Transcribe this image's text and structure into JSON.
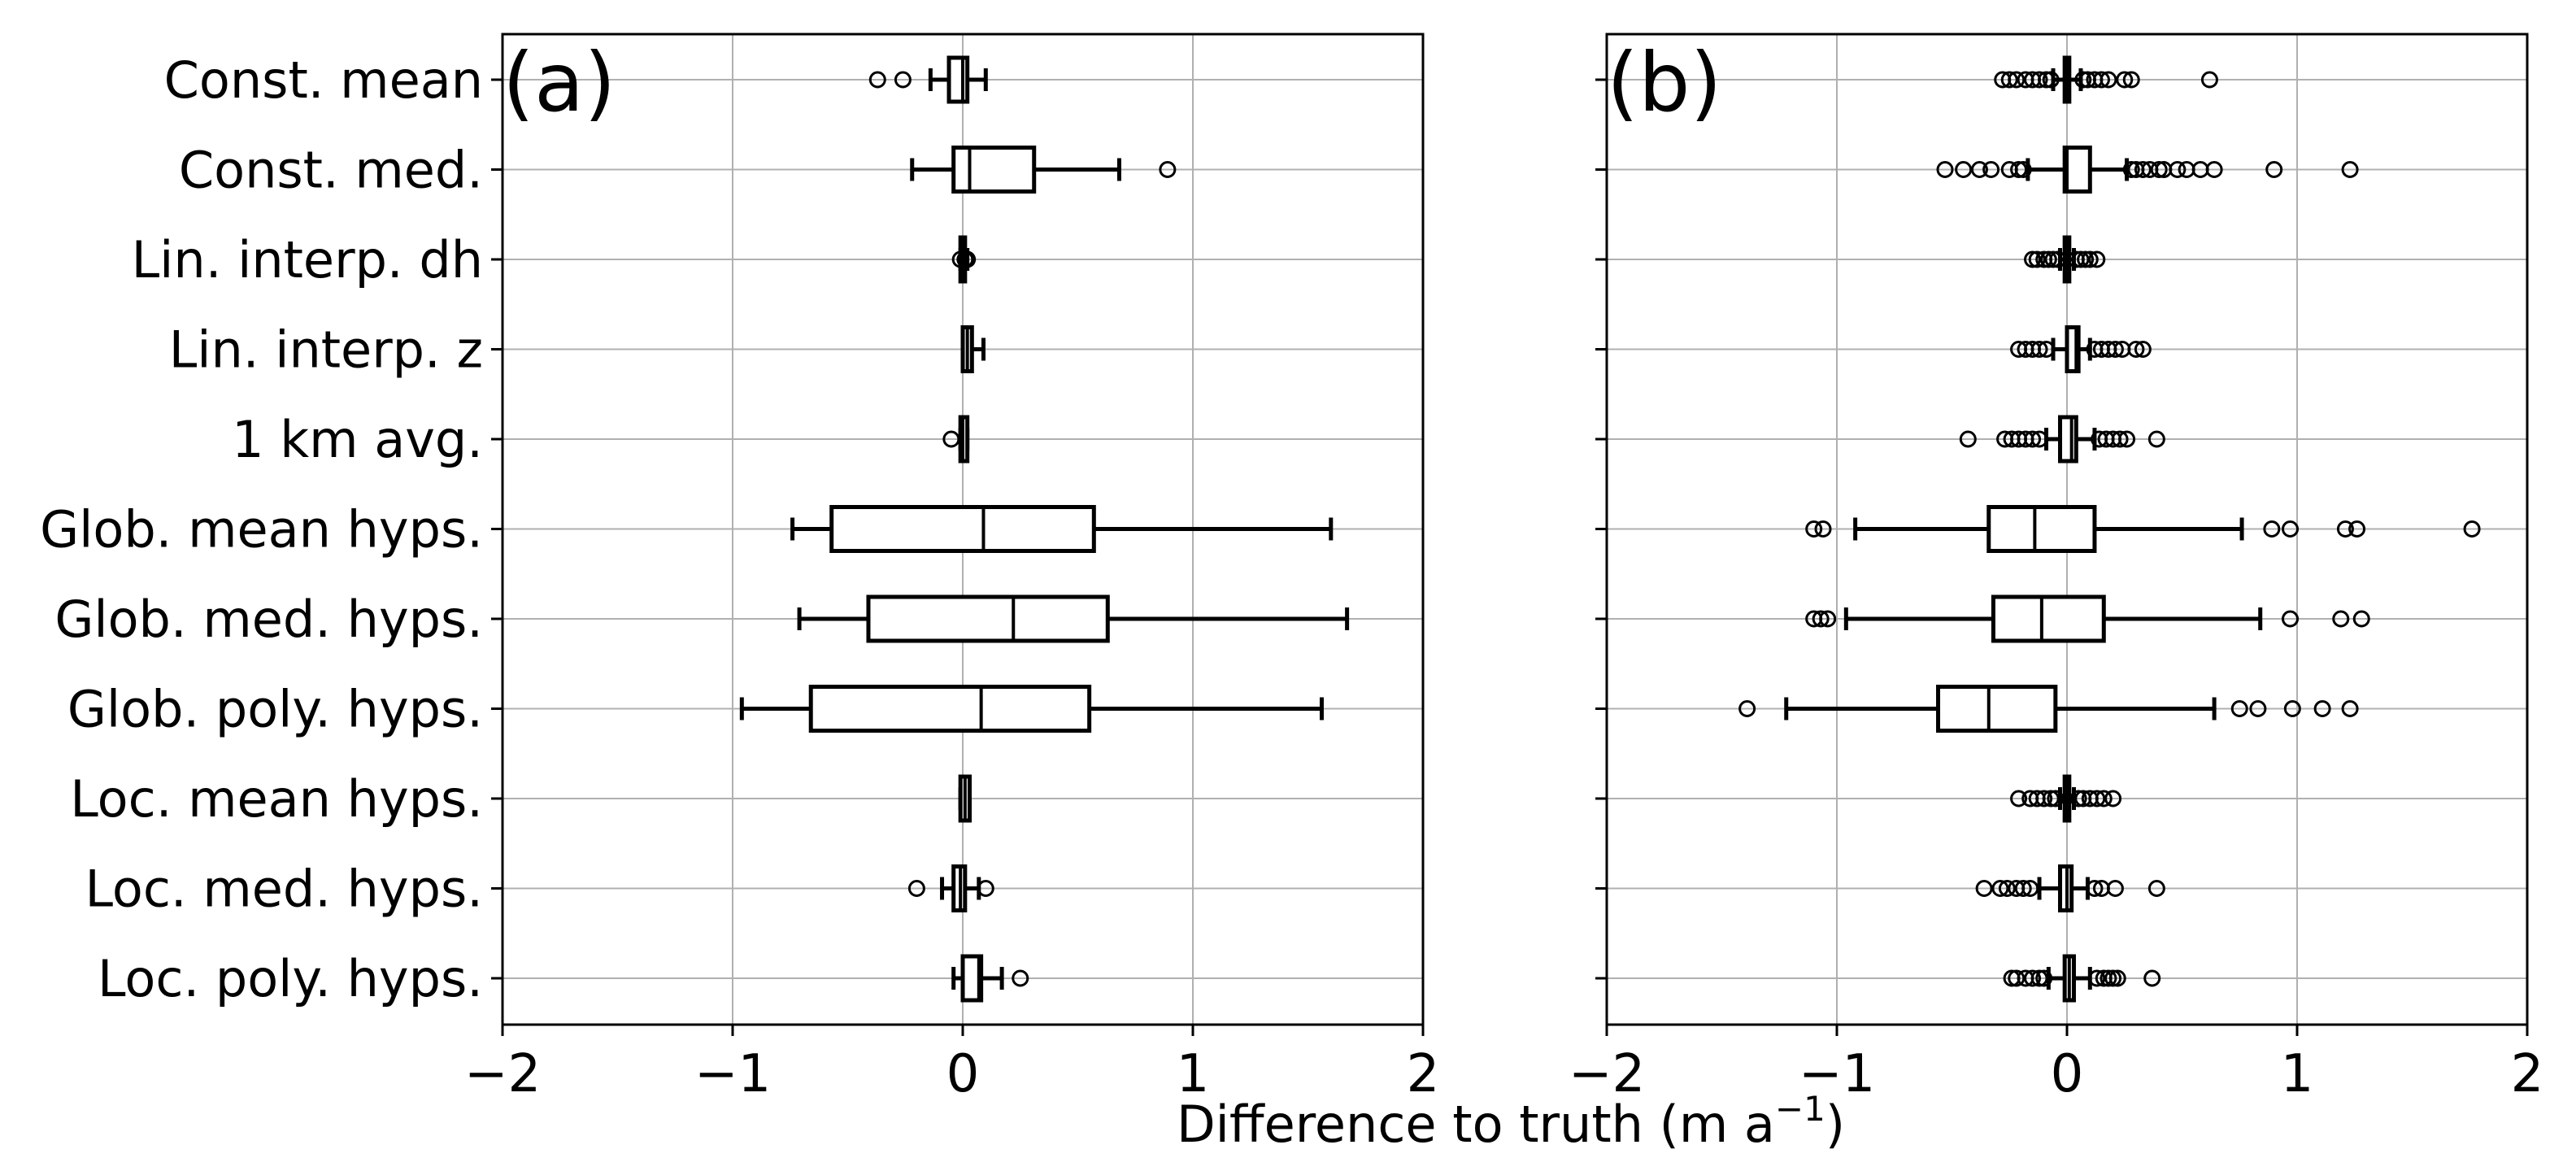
{
  "figure": {
    "xlabel": "Difference to truth (m a",
    "xlabel_exponent": "−1",
    "xlabel_close": ")"
  },
  "chart_data": [
    {
      "type": "box",
      "orientation": "horizontal",
      "panel_label": "(a)",
      "xlim": [
        -2,
        2
      ],
      "xticks": [
        -2,
        -1,
        0,
        1,
        2
      ],
      "xtick_labels": [
        "−2",
        "−1",
        "0",
        "1",
        "2"
      ],
      "grid": true,
      "categories": [
        "Const. mean",
        "Const. med.",
        "Lin. interp. dh",
        "Lin. interp. z",
        "1 km avg.",
        "Glob. mean hyps.",
        "Glob. med. hyps.",
        "Glob. poly. hyps.",
        "Loc. mean hyps.",
        "Loc. med. hyps.",
        "Loc. poly. hyps."
      ],
      "boxes": [
        {
          "whislo": -0.14,
          "q1": -0.06,
          "med": 0.0,
          "q3": 0.02,
          "whishi": 0.1,
          "fliers": [
            -0.37,
            -0.26
          ]
        },
        {
          "whislo": -0.22,
          "q1": -0.04,
          "med": 0.03,
          "q3": 0.31,
          "whishi": 0.68,
          "fliers": [
            0.89
          ]
        },
        {
          "whislo": -0.01,
          "q1": -0.01,
          "med": 0.0,
          "q3": 0.01,
          "whishi": 0.02,
          "fliers": [
            -0.01,
            0.01,
            0.02
          ]
        },
        {
          "whislo": 0.0,
          "q1": 0.0,
          "med": 0.02,
          "q3": 0.04,
          "whishi": 0.09,
          "fliers": []
        },
        {
          "whislo": -0.01,
          "q1": -0.01,
          "med": 0.0,
          "q3": 0.02,
          "whishi": 0.02,
          "fliers": [
            -0.05
          ]
        },
        {
          "whislo": -0.74,
          "q1": -0.57,
          "med": 0.09,
          "q3": 0.57,
          "whishi": 1.6,
          "fliers": []
        },
        {
          "whislo": -0.71,
          "q1": -0.41,
          "med": 0.22,
          "q3": 0.63,
          "whishi": 1.67,
          "fliers": []
        },
        {
          "whislo": -0.96,
          "q1": -0.66,
          "med": 0.08,
          "q3": 0.55,
          "whishi": 1.56,
          "fliers": []
        },
        {
          "whislo": -0.01,
          "q1": -0.01,
          "med": 0.01,
          "q3": 0.03,
          "whishi": 0.03,
          "fliers": []
        },
        {
          "whislo": -0.09,
          "q1": -0.04,
          "med": -0.01,
          "q3": 0.01,
          "whishi": 0.07,
          "fliers": [
            -0.2,
            0.1
          ]
        },
        {
          "whislo": -0.04,
          "q1 ": 0.0,
          "q1": 0.0,
          "med": 0.07,
          "q3": 0.08,
          "whishi": 0.17,
          "fliers": [
            0.25
          ]
        }
      ]
    },
    {
      "type": "box",
      "orientation": "horizontal",
      "panel_label": "(b)",
      "xlim": [
        -2,
        2
      ],
      "xticks": [
        -2,
        -1,
        0,
        1,
        2
      ],
      "xtick_labels": [
        "−2",
        "−1",
        "0",
        "1",
        "2"
      ],
      "grid": true,
      "categories": [
        "Const. mean",
        "Const. med.",
        "Lin. interp. dh",
        "Lin. interp. z",
        "1 km avg.",
        "Glob. mean hyps.",
        "Glob. med. hyps.",
        "Glob. poly. hyps.",
        "Loc. mean hyps.",
        "Loc. med. hyps.",
        "Loc. poly. hyps."
      ],
      "boxes": [
        {
          "whislo": -0.06,
          "q1": -0.01,
          "med": 0.0,
          "q3": 0.01,
          "whishi": 0.06,
          "fliers": [
            -0.28,
            -0.25,
            -0.22,
            -0.18,
            -0.15,
            -0.12,
            -0.09,
            -0.07,
            0.07,
            0.09,
            0.12,
            0.15,
            0.18,
            0.25,
            0.28,
            0.62
          ]
        },
        {
          "whislo": -0.17,
          "q1": -0.01,
          "med": 0.0,
          "q3": 0.1,
          "whishi": 0.26,
          "fliers": [
            -0.53,
            -0.45,
            -0.38,
            -0.33,
            -0.25,
            -0.21,
            -0.19,
            0.28,
            0.3,
            0.33,
            0.36,
            0.4,
            0.42,
            0.48,
            0.52,
            0.58,
            0.64,
            0.9,
            1.23
          ]
        },
        {
          "whislo": -0.03,
          "q1": -0.01,
          "med": 0.0,
          "q3": 0.01,
          "whishi": 0.03,
          "fliers": [
            -0.15,
            -0.13,
            -0.1,
            -0.08,
            -0.06,
            -0.04,
            0.04,
            0.06,
            0.08,
            0.1,
            0.13
          ]
        },
        {
          "whislo": -0.06,
          "q1": 0.0,
          "med": 0.04,
          "q3": 0.05,
          "whishi": 0.1,
          "fliers": [
            -0.21,
            -0.18,
            -0.15,
            -0.12,
            -0.09,
            0.12,
            0.15,
            0.18,
            0.21,
            0.24,
            0.3,
            0.33
          ]
        },
        {
          "whislo": -0.09,
          "q1": -0.03,
          "med": 0.02,
          "q3": 0.04,
          "whishi": 0.12,
          "fliers": [
            -0.43,
            -0.27,
            -0.24,
            -0.21,
            -0.18,
            -0.15,
            -0.12,
            0.14,
            0.17,
            0.2,
            0.23,
            0.26,
            0.39
          ]
        },
        {
          "whislo": -0.92,
          "q1": -0.34,
          "med": -0.14,
          "q3": 0.12,
          "whishi": 0.76,
          "fliers": [
            -1.1,
            -1.06,
            0.89,
            0.97,
            1.21,
            1.26,
            1.76
          ]
        },
        {
          "whislo": -0.96,
          "q1": -0.32,
          "med": -0.11,
          "q3": 0.16,
          "whishi": 0.84,
          "fliers": [
            -1.1,
            -1.07,
            -1.04,
            0.97,
            1.19,
            1.28
          ]
        },
        {
          "whislo": -1.22,
          "q1": -0.56,
          "med": -0.34,
          "q3": -0.05,
          "whishi": 0.64,
          "fliers": [
            -1.39,
            0.75,
            0.83,
            0.98,
            1.11,
            1.23
          ]
        },
        {
          "whislo": -0.03,
          "q1": -0.01,
          "med": 0.0,
          "q3": 0.01,
          "whishi": 0.03,
          "fliers": [
            -0.21,
            -0.16,
            -0.13,
            -0.1,
            -0.07,
            -0.05,
            0.05,
            0.07,
            0.1,
            0.13,
            0.16,
            0.2
          ]
        },
        {
          "whislo": -0.12,
          "q1": -0.03,
          "med": 0.0,
          "q3": 0.02,
          "whishi": 0.09,
          "fliers": [
            -0.36,
            -0.29,
            -0.26,
            -0.22,
            -0.19,
            -0.16,
            0.12,
            0.15,
            0.21,
            0.39
          ]
        },
        {
          "whislo": -0.08,
          "q1": -0.01,
          "med": 0.01,
          "q3": 0.03,
          "whishi": 0.1,
          "fliers": [
            -0.24,
            -0.22,
            -0.18,
            -0.15,
            -0.12,
            -0.1,
            0.13,
            0.16,
            0.18,
            0.2,
            0.22,
            0.37
          ]
        }
      ]
    }
  ]
}
